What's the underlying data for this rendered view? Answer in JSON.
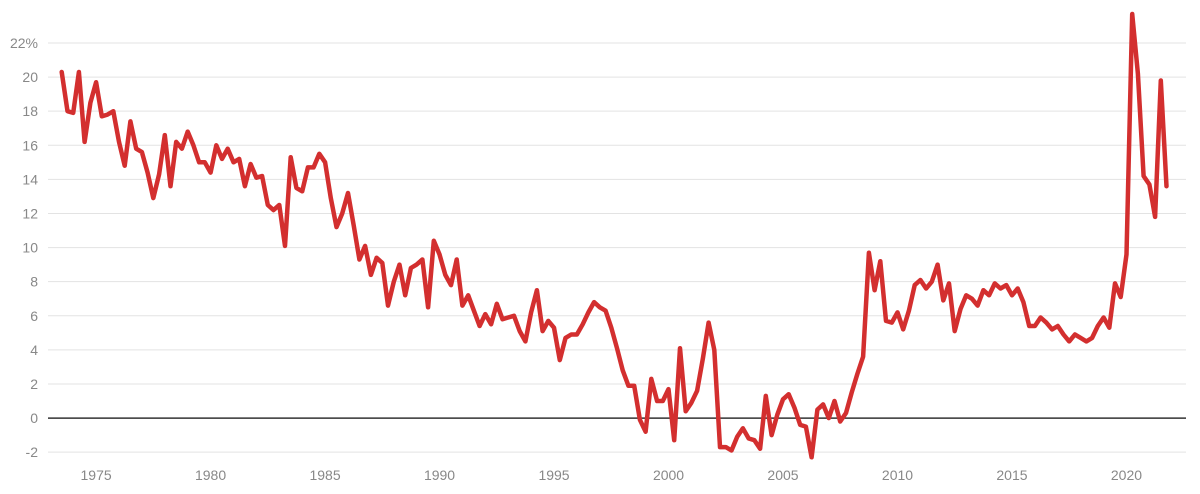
{
  "chart_data": {
    "type": "line",
    "title": "",
    "xlabel": "",
    "ylabel": "",
    "xlim": [
      1972.9,
      2022.6
    ],
    "ylim": [
      -2.4,
      23.7
    ],
    "grid": true,
    "legend": "none",
    "colors": {
      "line": "#d32f2f",
      "zero_line": "#333333",
      "grid": "#e3e3e3",
      "tick_text": "#888888"
    },
    "y_ticks": [
      {
        "value": 22,
        "label": "22%"
      },
      {
        "value": 20,
        "label": "20"
      },
      {
        "value": 18,
        "label": "18"
      },
      {
        "value": 16,
        "label": "16"
      },
      {
        "value": 14,
        "label": "14"
      },
      {
        "value": 12,
        "label": "12"
      },
      {
        "value": 10,
        "label": "10"
      },
      {
        "value": 8,
        "label": "8"
      },
      {
        "value": 6,
        "label": "6"
      },
      {
        "value": 4,
        "label": "4"
      },
      {
        "value": 2,
        "label": "2"
      },
      {
        "value": 0,
        "label": "0"
      },
      {
        "value": -2,
        "label": "-2"
      }
    ],
    "x_ticks": [
      {
        "value": 1975,
        "label": "1975"
      },
      {
        "value": 1980,
        "label": "1980"
      },
      {
        "value": 1985,
        "label": "1985"
      },
      {
        "value": 1990,
        "label": "1990"
      },
      {
        "value": 1995,
        "label": "1995"
      },
      {
        "value": 2000,
        "label": "2000"
      },
      {
        "value": 2005,
        "label": "2005"
      },
      {
        "value": 2010,
        "label": "2010"
      },
      {
        "value": 2015,
        "label": "2015"
      },
      {
        "value": 2020,
        "label": "2020"
      }
    ],
    "series": [
      {
        "points": [
          [
            1973.5,
            20.3
          ],
          [
            1973.75,
            18.0
          ],
          [
            1974.0,
            17.9
          ],
          [
            1974.25,
            20.3
          ],
          [
            1974.5,
            16.2
          ],
          [
            1974.75,
            18.5
          ],
          [
            1975.0,
            19.7
          ],
          [
            1975.25,
            17.7
          ],
          [
            1975.5,
            17.8
          ],
          [
            1975.75,
            18.0
          ],
          [
            1976.0,
            16.2
          ],
          [
            1976.25,
            14.8
          ],
          [
            1976.5,
            17.4
          ],
          [
            1976.75,
            15.8
          ],
          [
            1977.0,
            15.6
          ],
          [
            1977.25,
            14.4
          ],
          [
            1977.5,
            12.9
          ],
          [
            1977.75,
            14.3
          ],
          [
            1978.0,
            16.6
          ],
          [
            1978.25,
            13.6
          ],
          [
            1978.5,
            16.2
          ],
          [
            1978.75,
            15.8
          ],
          [
            1979.0,
            16.8
          ],
          [
            1979.25,
            16.0
          ],
          [
            1979.5,
            15.0
          ],
          [
            1979.75,
            15.0
          ],
          [
            1980.0,
            14.4
          ],
          [
            1980.25,
            16.0
          ],
          [
            1980.5,
            15.2
          ],
          [
            1980.75,
            15.8
          ],
          [
            1981.0,
            15.0
          ],
          [
            1981.25,
            15.2
          ],
          [
            1981.5,
            13.6
          ],
          [
            1981.75,
            14.9
          ],
          [
            1982.0,
            14.1
          ],
          [
            1982.25,
            14.2
          ],
          [
            1982.5,
            12.5
          ],
          [
            1982.75,
            12.2
          ],
          [
            1983.0,
            12.5
          ],
          [
            1983.25,
            10.1
          ],
          [
            1983.5,
            15.3
          ],
          [
            1983.75,
            13.5
          ],
          [
            1984.0,
            13.3
          ],
          [
            1984.25,
            14.7
          ],
          [
            1984.5,
            14.7
          ],
          [
            1984.75,
            15.5
          ],
          [
            1985.0,
            15.0
          ],
          [
            1985.25,
            12.9
          ],
          [
            1985.5,
            11.2
          ],
          [
            1985.75,
            12.0
          ],
          [
            1986.0,
            13.2
          ],
          [
            1986.25,
            11.3
          ],
          [
            1986.5,
            9.3
          ],
          [
            1986.75,
            10.1
          ],
          [
            1987.0,
            8.4
          ],
          [
            1987.25,
            9.4
          ],
          [
            1987.5,
            9.1
          ],
          [
            1987.75,
            6.6
          ],
          [
            1988.0,
            8.0
          ],
          [
            1988.25,
            9.0
          ],
          [
            1988.5,
            7.2
          ],
          [
            1988.75,
            8.8
          ],
          [
            1989.0,
            9.0
          ],
          [
            1989.25,
            9.3
          ],
          [
            1989.5,
            6.5
          ],
          [
            1989.75,
            10.4
          ],
          [
            1990.0,
            9.6
          ],
          [
            1990.25,
            8.4
          ],
          [
            1990.5,
            7.8
          ],
          [
            1990.75,
            9.3
          ],
          [
            1991.0,
            6.6
          ],
          [
            1991.25,
            7.2
          ],
          [
            1991.5,
            6.3
          ],
          [
            1991.75,
            5.4
          ],
          [
            1992.0,
            6.1
          ],
          [
            1992.25,
            5.5
          ],
          [
            1992.5,
            6.7
          ],
          [
            1992.75,
            5.8
          ],
          [
            1993.0,
            5.9
          ],
          [
            1993.25,
            6.0
          ],
          [
            1993.5,
            5.1
          ],
          [
            1993.75,
            4.5
          ],
          [
            1994.0,
            6.2
          ],
          [
            1994.25,
            7.5
          ],
          [
            1994.5,
            5.1
          ],
          [
            1994.75,
            5.7
          ],
          [
            1995.0,
            5.3
          ],
          [
            1995.25,
            3.4
          ],
          [
            1995.5,
            4.7
          ],
          [
            1995.75,
            4.9
          ],
          [
            1996.0,
            4.9
          ],
          [
            1996.25,
            5.5
          ],
          [
            1996.5,
            6.2
          ],
          [
            1996.75,
            6.8
          ],
          [
            1997.0,
            6.5
          ],
          [
            1997.25,
            6.3
          ],
          [
            1997.5,
            5.3
          ],
          [
            1997.75,
            4.1
          ],
          [
            1998.0,
            2.8
          ],
          [
            1998.25,
            1.9
          ],
          [
            1998.5,
            1.9
          ],
          [
            1998.75,
            -0.1
          ],
          [
            1999.0,
            -0.8
          ],
          [
            1999.25,
            2.3
          ],
          [
            1999.5,
            1.0
          ],
          [
            1999.75,
            1.0
          ],
          [
            2000.0,
            1.7
          ],
          [
            2000.25,
            -1.3
          ],
          [
            2000.5,
            4.1
          ],
          [
            2000.75,
            0.4
          ],
          [
            2001.0,
            0.9
          ],
          [
            2001.25,
            1.6
          ],
          [
            2001.5,
            3.5
          ],
          [
            2001.75,
            5.6
          ],
          [
            2002.0,
            4.0
          ],
          [
            2002.25,
            -1.7
          ],
          [
            2002.5,
            -1.7
          ],
          [
            2002.75,
            -1.9
          ],
          [
            2003.0,
            -1.1
          ],
          [
            2003.25,
            -0.6
          ],
          [
            2003.5,
            -1.2
          ],
          [
            2003.75,
            -1.3
          ],
          [
            2004.0,
            -1.8
          ],
          [
            2004.25,
            1.3
          ],
          [
            2004.5,
            -1.0
          ],
          [
            2004.75,
            0.2
          ],
          [
            2005.0,
            1.1
          ],
          [
            2005.25,
            1.4
          ],
          [
            2005.5,
            0.6
          ],
          [
            2005.75,
            -0.4
          ],
          [
            2006.0,
            -0.5
          ],
          [
            2006.25,
            -2.3
          ],
          [
            2006.5,
            0.5
          ],
          [
            2006.75,
            0.8
          ],
          [
            2007.0,
            0.0
          ],
          [
            2007.25,
            1.0
          ],
          [
            2007.5,
            -0.2
          ],
          [
            2007.75,
            0.3
          ],
          [
            2008.0,
            1.5
          ],
          [
            2008.25,
            2.6
          ],
          [
            2008.5,
            3.6
          ],
          [
            2008.75,
            9.7
          ],
          [
            2009.0,
            7.5
          ],
          [
            2009.25,
            9.2
          ],
          [
            2009.5,
            5.7
          ],
          [
            2009.75,
            5.6
          ],
          [
            2010.0,
            6.2
          ],
          [
            2010.25,
            5.2
          ],
          [
            2010.5,
            6.3
          ],
          [
            2010.75,
            7.8
          ],
          [
            2011.0,
            8.1
          ],
          [
            2011.25,
            7.6
          ],
          [
            2011.5,
            8.0
          ],
          [
            2011.75,
            9.0
          ],
          [
            2012.0,
            6.9
          ],
          [
            2012.25,
            7.9
          ],
          [
            2012.5,
            5.1
          ],
          [
            2012.75,
            6.4
          ],
          [
            2013.0,
            7.2
          ],
          [
            2013.25,
            7.0
          ],
          [
            2013.5,
            6.6
          ],
          [
            2013.75,
            7.5
          ],
          [
            2014.0,
            7.2
          ],
          [
            2014.25,
            7.9
          ],
          [
            2014.5,
            7.6
          ],
          [
            2014.75,
            7.8
          ],
          [
            2015.0,
            7.2
          ],
          [
            2015.25,
            7.6
          ],
          [
            2015.5,
            6.8
          ],
          [
            2015.75,
            5.4
          ],
          [
            2016.0,
            5.4
          ],
          [
            2016.25,
            5.9
          ],
          [
            2016.5,
            5.6
          ],
          [
            2016.75,
            5.2
          ],
          [
            2017.0,
            5.4
          ],
          [
            2017.25,
            4.9
          ],
          [
            2017.5,
            4.5
          ],
          [
            2017.75,
            4.9
          ],
          [
            2018.0,
            4.7
          ],
          [
            2018.25,
            4.5
          ],
          [
            2018.5,
            4.7
          ],
          [
            2018.75,
            5.4
          ],
          [
            2019.0,
            5.9
          ],
          [
            2019.25,
            5.3
          ],
          [
            2019.5,
            7.9
          ],
          [
            2019.75,
            7.1
          ],
          [
            2020.0,
            9.6
          ],
          [
            2020.25,
            23.7
          ],
          [
            2020.5,
            20.2
          ],
          [
            2020.75,
            14.2
          ],
          [
            2021.0,
            13.7
          ],
          [
            2021.25,
            11.8
          ],
          [
            2021.5,
            19.8
          ],
          [
            2021.75,
            13.6
          ]
        ]
      }
    ]
  }
}
